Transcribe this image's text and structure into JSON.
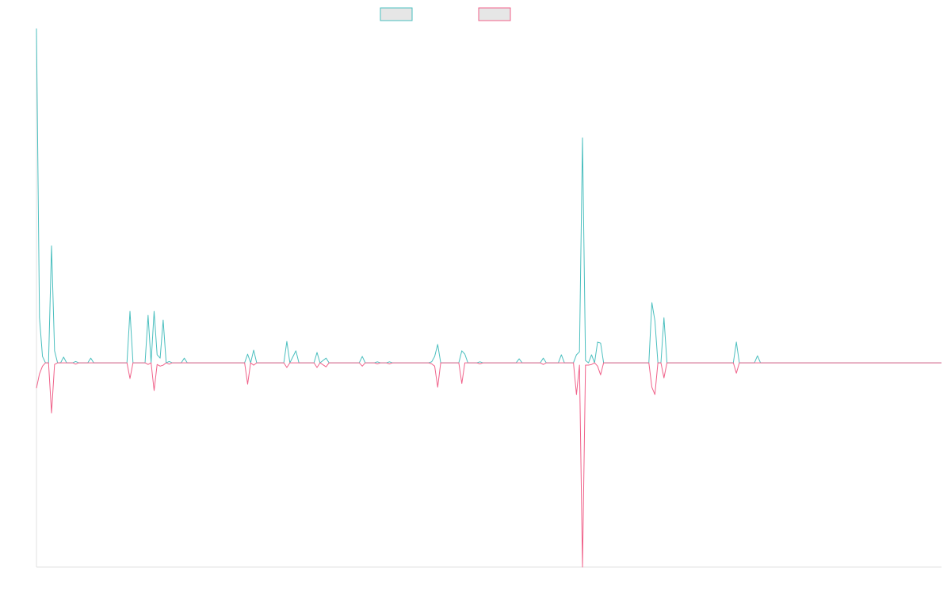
{
  "chart_data": {
    "type": "line",
    "x": [
      0,
      1,
      2,
      3,
      4,
      5,
      6,
      7,
      8,
      9,
      10,
      12,
      13,
      14,
      17,
      18,
      19,
      30,
      31,
      32,
      36,
      37,
      38,
      39,
      40,
      41,
      42,
      43,
      44,
      45,
      48,
      49,
      50,
      69,
      70,
      71,
      72,
      73,
      82,
      83,
      84,
      86,
      87,
      92,
      93,
      94,
      96,
      97,
      107,
      108,
      109,
      112,
      113,
      114,
      116,
      117,
      118,
      130,
      131,
      132,
      133,
      134,
      140,
      141,
      142,
      143,
      146,
      147,
      148,
      159,
      160,
      161,
      167,
      168,
      169,
      173,
      174,
      175,
      178,
      179,
      180,
      181,
      182,
      183,
      184,
      185,
      186,
      187,
      188,
      203,
      204,
      205,
      206,
      207,
      208,
      209,
      231,
      232,
      233,
      238,
      239,
      240,
      300
    ],
    "series": [
      {
        "color": "#4bbfbf",
        "values": [
          100,
          13.5,
          1.9,
          0,
          0,
          35,
          3.6,
          0,
          0,
          1.7,
          0,
          0,
          0.4,
          0,
          0,
          1.4,
          0,
          0,
          15.4,
          0,
          0,
          14.2,
          0,
          15.4,
          2.4,
          1.4,
          12.8,
          0,
          0.4,
          0,
          0,
          1.4,
          0,
          0,
          2.6,
          0,
          3.8,
          0,
          0,
          6.4,
          0,
          3.6,
          0,
          0,
          3.1,
          0,
          1.4,
          0,
          0,
          1.9,
          0,
          0,
          0.3,
          0,
          0,
          0.3,
          0,
          0,
          0.3,
          1.9,
          5.5,
          0,
          0,
          3.6,
          2.6,
          0,
          0,
          0.3,
          0,
          0,
          1.2,
          0,
          0,
          1.4,
          0,
          0,
          2.4,
          0,
          0,
          2.4,
          3.3,
          67.3,
          0.7,
          0,
          2.4,
          0,
          6.2,
          5.9,
          0,
          0,
          18,
          12.6,
          0,
          0,
          13.5,
          0,
          0,
          6.2,
          0,
          0,
          2.1,
          0,
          0
        ]
      },
      {
        "color": "#f0628a",
        "values": [
          -7.6,
          -3.3,
          -1,
          0,
          0,
          -15,
          -0.5,
          0,
          0,
          0,
          0,
          0,
          -0.4,
          0,
          0,
          0,
          0,
          0,
          -4.7,
          0,
          0,
          -0.5,
          0,
          -8.3,
          -0.5,
          -1,
          -0.7,
          0,
          -0.4,
          0,
          0,
          0,
          0,
          0,
          -6.4,
          0,
          -0.7,
          0,
          0,
          -1.4,
          0,
          0,
          0,
          0,
          -1.4,
          0,
          -1.2,
          0,
          0,
          -1,
          0,
          0,
          -0.3,
          0,
          0,
          -0.3,
          0,
          0,
          -0.3,
          -1,
          -7.3,
          0,
          0,
          -6.2,
          0,
          0,
          0,
          -0.3,
          0,
          0,
          0,
          0,
          0,
          -0.5,
          0,
          0,
          0,
          0,
          0,
          -9.5,
          -0.7,
          -61.1,
          -0.7,
          -0.7,
          -0.5,
          0,
          -1,
          -3.6,
          0,
          0,
          -7.3,
          -9.5,
          0,
          0,
          -4.5,
          0,
          0,
          -3.1,
          0,
          0,
          0,
          0,
          0
        ]
      }
    ],
    "xlim": [
      0,
      300
    ],
    "ylim": [
      -61.1,
      100
    ]
  }
}
